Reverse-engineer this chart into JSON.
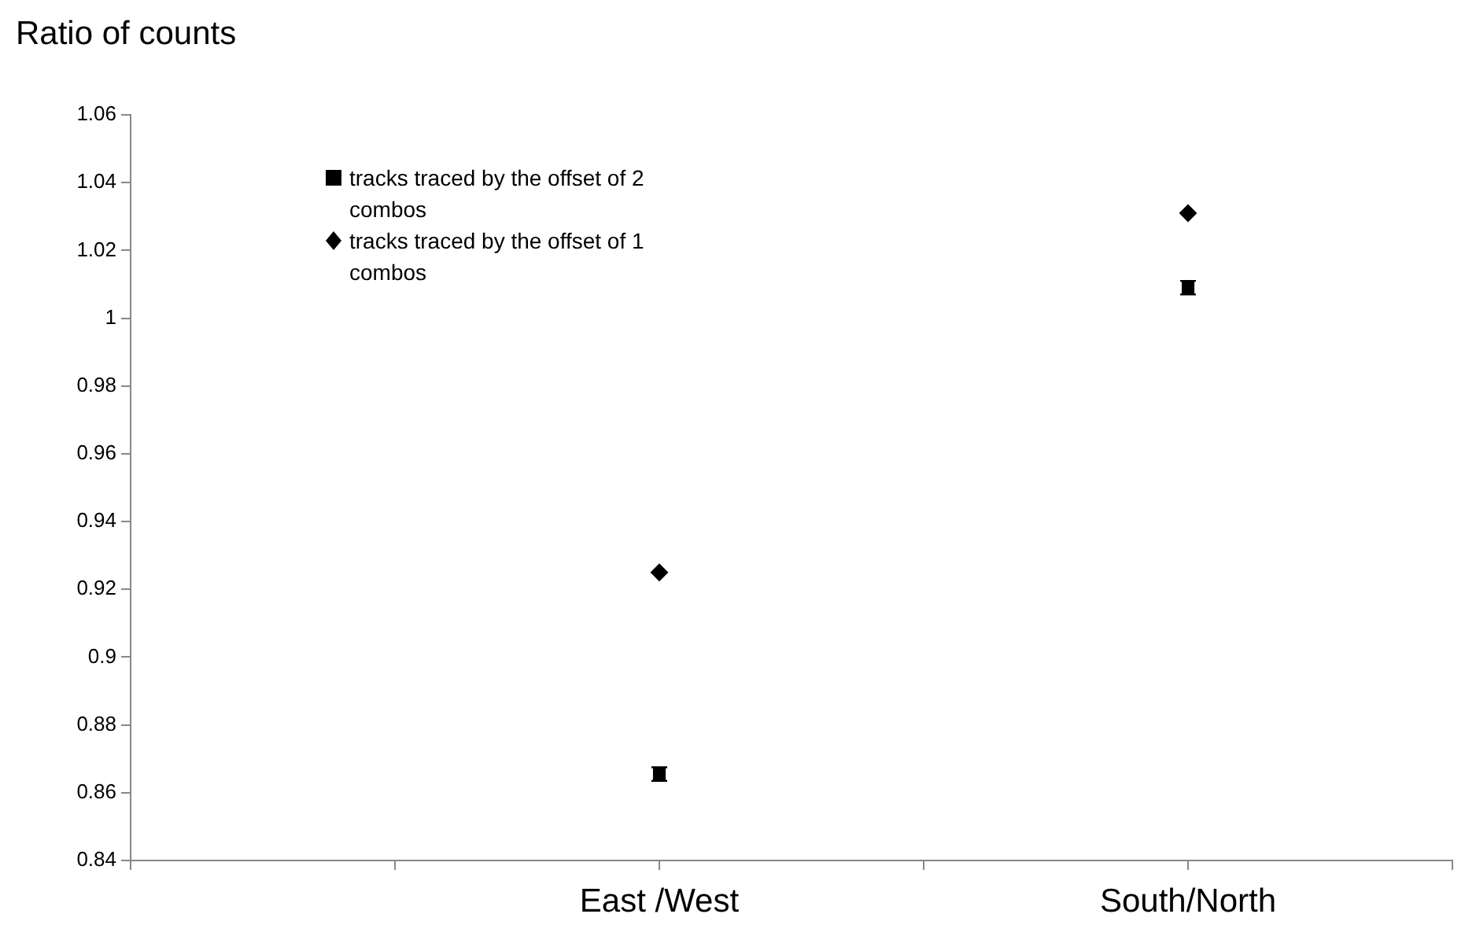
{
  "chart_data": {
    "type": "scatter",
    "ylabel": "Ratio of counts",
    "categories": [
      null,
      null,
      "East /West",
      null,
      "South/North",
      null
    ],
    "series": [
      {
        "name": "tracks traced by the offset of 2 combos",
        "color": "#000000",
        "marker": "square",
        "values": [
          null,
          null,
          0.8655,
          null,
          1.009,
          null
        ],
        "errors": [
          null,
          null,
          0.002,
          null,
          0.002,
          null
        ]
      },
      {
        "name": "tracks traced by the offset of 1 combos",
        "color": "#000000",
        "marker": "diamond",
        "values": [
          null,
          null,
          0.925,
          null,
          1.031,
          null
        ]
      }
    ],
    "ylim": [
      0.84,
      1.06
    ],
    "yticks": [
      0.84,
      0.86,
      0.88,
      0.9,
      0.92,
      0.94,
      0.96,
      0.98,
      1,
      1.02,
      1.04,
      1.06
    ],
    "grid": false,
    "legend": "top left"
  }
}
